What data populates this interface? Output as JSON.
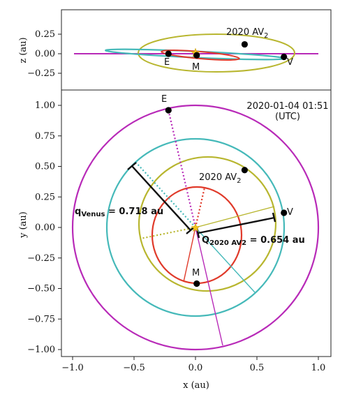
{
  "chart_data": [
    {
      "type": "line",
      "panel": "top",
      "xlim": [
        -1.1,
        1.1
      ],
      "ylim": [
        -0.3,
        0.3
      ],
      "ylabel": "z (au)",
      "yticks": [
        {
          "v": 0.25,
          "label": "0.25"
        },
        {
          "v": 0.0,
          "label": "0.00"
        },
        {
          "v": -0.25,
          "label": "−0.25"
        }
      ],
      "points": [
        {
          "name": "E",
          "x": -0.22,
          "z": 0.0
        },
        {
          "name": "M",
          "x": 0.01,
          "z": -0.02
        },
        {
          "name": "2020 AV",
          "sub": "2",
          "x": 0.4,
          "z": 0.12
        },
        {
          "name": "V",
          "x": 0.72,
          "z": -0.04
        }
      ],
      "sun": {
        "x": 0.0,
        "z": 0.01
      }
    },
    {
      "type": "line",
      "panel": "bottom",
      "xlim": [
        -1.1,
        1.1
      ],
      "ylim": [
        -1.1,
        1.1
      ],
      "xlabel": "x (au)",
      "ylabel": "y (au)",
      "xticks": [
        {
          "v": -1.0,
          "label": "−1.0"
        },
        {
          "v": -0.5,
          "label": "−0.5"
        },
        {
          "v": 0.0,
          "label": "0.0"
        },
        {
          "v": 0.5,
          "label": "0.5"
        },
        {
          "v": 1.0,
          "label": "1.0"
        }
      ],
      "yticks": [
        {
          "v": 1.0,
          "label": "1.00"
        },
        {
          "v": 0.75,
          "label": "0.75"
        },
        {
          "v": 0.5,
          "label": "0.50"
        },
        {
          "v": 0.25,
          "label": "0.25"
        },
        {
          "v": 0.0,
          "label": "0.00"
        },
        {
          "v": -0.25,
          "label": "−0.25"
        },
        {
          "v": -0.5,
          "label": "−0.50"
        },
        {
          "v": -0.75,
          "label": "−0.75"
        },
        {
          "v": -1.0,
          "label": "−1.00"
        }
      ],
      "timestamp": "2020-01-04 01:51",
      "timestamp_note": "(UTC)",
      "orbits": [
        {
          "body": "Earth",
          "color": "#b82ab8",
          "a": 1.0,
          "e": 0.0167
        },
        {
          "body": "Venus",
          "color": "#45b9b9",
          "a": 0.723,
          "e": 0.0068
        },
        {
          "body": "2020 AV2",
          "color": "#b8b62f",
          "a": 0.555,
          "e": 0.177
        },
        {
          "body": "Mercury",
          "color": "#e03a2a",
          "a": 0.387,
          "e": 0.2056
        }
      ],
      "points": [
        {
          "name": "E",
          "x": -0.22,
          "y": 0.96
        },
        {
          "name": "M",
          "x": 0.01,
          "y": -0.46
        },
        {
          "name": "2020 AV",
          "sub": "2",
          "x": 0.4,
          "y": 0.47
        },
        {
          "name": "V",
          "x": 0.72,
          "y": 0.12
        }
      ],
      "annotations": {
        "q_venus": {
          "prefix": "q",
          "sub": "Venus",
          "text": " = 0.718 au"
        },
        "Q_av2": {
          "prefix": "Q",
          "sub": "2020 AV2",
          "text": " = 0.654 au"
        }
      }
    }
  ],
  "colors": {
    "earth": "#b82ab8",
    "venus": "#45b9b9",
    "av2": "#b8b62f",
    "mercury": "#e03a2a",
    "sun": "#f2c21b"
  }
}
